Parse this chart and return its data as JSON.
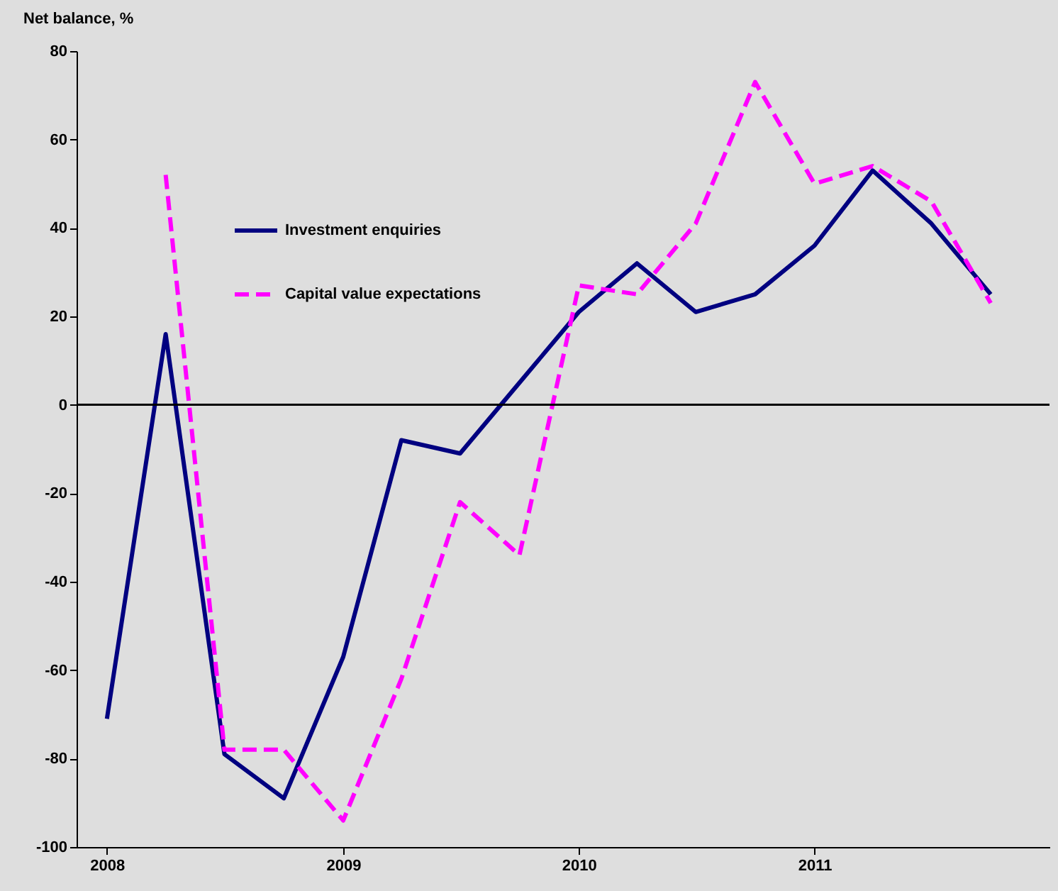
{
  "chart_data": {
    "type": "line",
    "ylabel": "Net balance, %",
    "x": [
      "2008-01",
      "2008-04",
      "2008-07",
      "2008-10",
      "2009-01",
      "2009-04",
      "2009-07",
      "2009-10",
      "2010-01",
      "2010-04",
      "2010-07",
      "2010-10",
      "2011-01",
      "2011-04",
      "2011-07",
      "2011-10"
    ],
    "series": [
      {
        "name": "Investment enquiries",
        "color": "#000080",
        "line_style": "solid",
        "values": [
          -71,
          16,
          -79,
          -89,
          -57,
          -8,
          -11,
          5,
          21,
          32,
          21,
          25,
          36,
          53,
          41,
          25
        ]
      },
      {
        "name": "Capital value expectations",
        "color": "#ff00ff",
        "line_style": "dashed",
        "values": [
          null,
          52,
          -78,
          -78,
          -94,
          -62,
          -22,
          -34,
          27,
          25,
          41,
          73,
          50,
          54,
          46,
          23
        ]
      }
    ],
    "xlim": [
      "2007-11-15",
      "2011-12-31"
    ],
    "xticks": [
      "2008",
      "2009",
      "2010",
      "2011"
    ],
    "ylim": [
      -100,
      80
    ],
    "yticks": [
      -100,
      -80,
      -60,
      -40,
      -20,
      0,
      20,
      40,
      60,
      80
    ],
    "ref_lines": [
      {
        "axis": "y",
        "value": 0
      }
    ],
    "legend": "top left",
    "marker": "none"
  }
}
